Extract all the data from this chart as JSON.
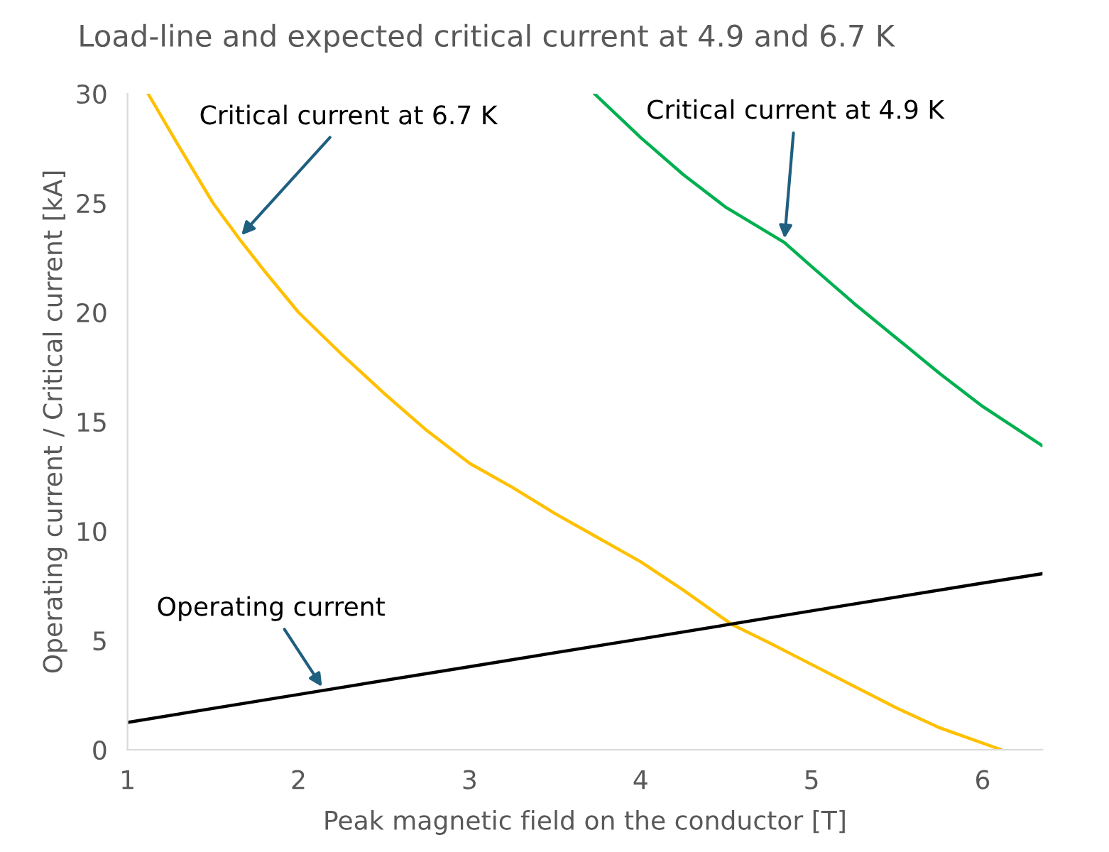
{
  "chart_data": {
    "type": "line",
    "title": "Load-line and expected critical current at 4.9 and 6.7 K",
    "xlabel": "Peak magnetic field on the conductor [T]",
    "ylabel": "Operating current / Critical current [kA]",
    "series": [
      {
        "x": [
          1.12,
          1.3,
          1.5,
          1.65,
          1.8,
          2.0,
          2.25,
          2.5,
          2.75,
          3.0,
          3.25,
          3.5,
          3.75,
          4.0,
          4.25,
          4.53,
          4.75,
          5.0,
          5.25,
          5.5,
          5.75,
          6.11
        ],
        "values": [
          30,
          27.6,
          25.0,
          23.4,
          21.9,
          20.0,
          18.1,
          16.3,
          14.6,
          13.1,
          12.0,
          10.8,
          9.7,
          8.6,
          7.3,
          5.75,
          4.9,
          3.9,
          2.9,
          1.9,
          1.0,
          0
        ],
        "color": "#ffc000"
      },
      {
        "x": [
          3.73,
          4.0,
          4.25,
          4.5,
          4.84,
          5.0,
          5.25,
          5.5,
          5.75,
          6.0,
          6.35
        ],
        "values": [
          30,
          28.0,
          26.3,
          24.8,
          23.2,
          22.1,
          20.4,
          18.8,
          17.2,
          15.7,
          13.9
        ],
        "color": "#00b050"
      },
      {
        "x": [
          1,
          2,
          3,
          4,
          5,
          6,
          6.35
        ],
        "values": [
          1.25,
          2.53,
          3.8,
          5.07,
          6.35,
          7.62,
          8.05
        ],
        "color": "#000000"
      }
    ],
    "annotations": [
      {
        "text": "Critical current at 6.7 K",
        "x": 1.65,
        "y": 23.4
      },
      {
        "text": "Critical current at 4.9 K",
        "x": 4.84,
        "y": 23.2
      },
      {
        "text": "Operating current",
        "x": 2.15,
        "y": 2.73
      }
    ],
    "xlim": [
      1,
      6.35
    ],
    "ylim": [
      0,
      30
    ],
    "xticks": [
      1,
      2,
      3,
      4,
      5,
      6
    ],
    "yticks": [
      0,
      5,
      10,
      15,
      20,
      25,
      30
    ],
    "grid": false,
    "legend": false
  }
}
